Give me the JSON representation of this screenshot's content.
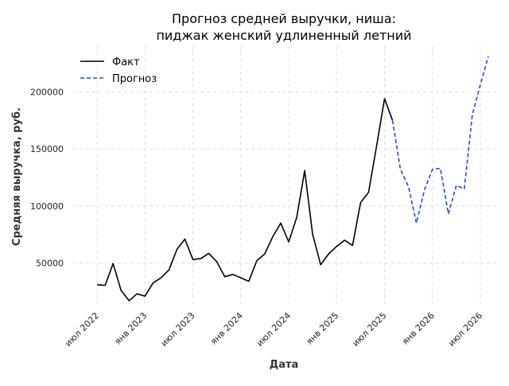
{
  "chart_data": {
    "type": "line",
    "title_line1": "Прогноз средней выручки, ниша:",
    "title_line2": "пиджак женский удлиненный летний",
    "xlabel": "Дата",
    "ylabel": "Средняя выручка, руб.",
    "legend": {
      "placement": "top-left",
      "entries": [
        {
          "name": "Факт",
          "color": "#000000",
          "style": "solid"
        },
        {
          "name": "Прогноз",
          "color": "#1f4fd6",
          "style": "dashed"
        }
      ]
    },
    "grid": true,
    "ylim": [
      12000,
      240000
    ],
    "xlim": [
      "2022-04",
      "2026-09"
    ],
    "x_ticks": [
      {
        "date": "2022-07",
        "label": "июл 2022"
      },
      {
        "date": "2023-01",
        "label": "янв 2023"
      },
      {
        "date": "2023-07",
        "label": "июл 2023"
      },
      {
        "date": "2024-01",
        "label": "янв 2024"
      },
      {
        "date": "2024-07",
        "label": "июл 2024"
      },
      {
        "date": "2025-01",
        "label": "янв 2025"
      },
      {
        "date": "2025-07",
        "label": "июл 2025"
      },
      {
        "date": "2026-01",
        "label": "янв 2026"
      },
      {
        "date": "2026-07",
        "label": "июл 2026"
      }
    ],
    "y_ticks": [
      {
        "value": 50000,
        "label": "50000"
      },
      {
        "value": 100000,
        "label": "100000"
      },
      {
        "value": 150000,
        "label": "150000"
      },
      {
        "value": 200000,
        "label": "200000"
      }
    ],
    "series": [
      {
        "name": "Факт",
        "color": "#000000",
        "style": "solid",
        "points": [
          [
            "2022-07",
            31000
          ],
          [
            "2022-08",
            30500
          ],
          [
            "2022-09",
            49500
          ],
          [
            "2022-10",
            26000
          ],
          [
            "2022-11",
            17000
          ],
          [
            "2022-12",
            23000
          ],
          [
            "2023-01",
            21000
          ],
          [
            "2023-02",
            32500
          ],
          [
            "2023-03",
            37000
          ],
          [
            "2023-04",
            44000
          ],
          [
            "2023-05",
            62000
          ],
          [
            "2023-06",
            71000
          ],
          [
            "2023-07",
            53000
          ],
          [
            "2023-08",
            54000
          ],
          [
            "2023-09",
            58500
          ],
          [
            "2023-10",
            51000
          ],
          [
            "2023-11",
            38000
          ],
          [
            "2023-12",
            40000
          ],
          [
            "2024-01",
            37000
          ],
          [
            "2024-02",
            34000
          ],
          [
            "2024-03",
            52000
          ],
          [
            "2024-04",
            58000
          ],
          [
            "2024-05",
            73000
          ],
          [
            "2024-06",
            85000
          ],
          [
            "2024-07",
            68500
          ],
          [
            "2024-08",
            90000
          ],
          [
            "2024-09",
            131000
          ],
          [
            "2024-10",
            75000
          ],
          [
            "2024-11",
            48500
          ],
          [
            "2024-12",
            58000
          ],
          [
            "2025-01",
            64500
          ],
          [
            "2025-02",
            70000
          ],
          [
            "2025-03",
            65500
          ],
          [
            "2025-04",
            103000
          ],
          [
            "2025-05",
            112000
          ],
          [
            "2025-06",
            152000
          ],
          [
            "2025-07",
            194000
          ],
          [
            "2025-08",
            175000
          ]
        ]
      },
      {
        "name": "Прогноз",
        "color": "#1f4fd6",
        "style": "dashed",
        "points": [
          [
            "2025-08",
            175000
          ],
          [
            "2025-09",
            132000
          ],
          [
            "2025-10",
            117000
          ],
          [
            "2025-11",
            85000
          ],
          [
            "2025-12",
            114000
          ],
          [
            "2026-01",
            132000
          ],
          [
            "2026-02",
            133000
          ],
          [
            "2026-03",
            93000
          ],
          [
            "2026-04",
            118000
          ],
          [
            "2026-05",
            115000
          ],
          [
            "2026-06",
            180000
          ],
          [
            "2026-07",
            206000
          ],
          [
            "2026-08",
            231000
          ]
        ]
      }
    ]
  }
}
